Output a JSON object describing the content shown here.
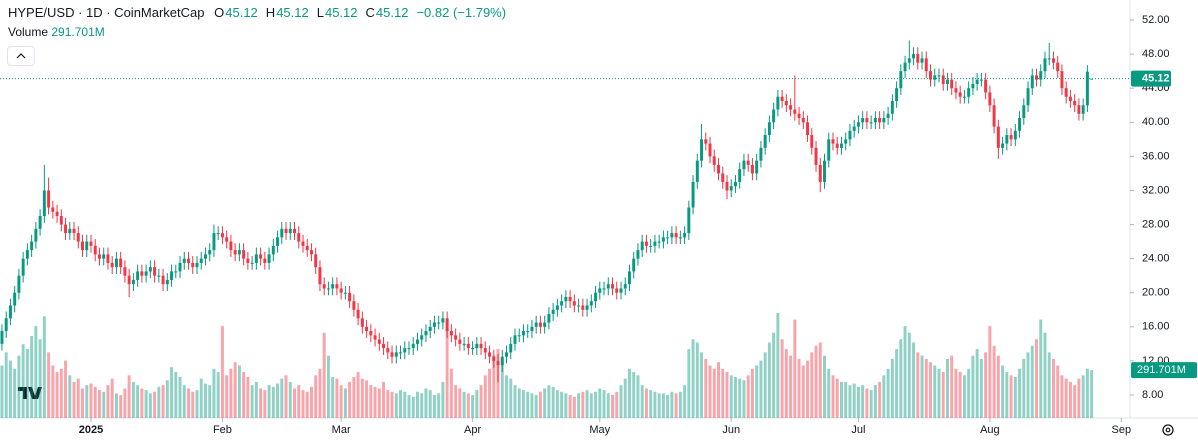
{
  "chart_data": {
    "type": "candlestick",
    "title": "HYPE/USD · 1D · CoinMarketCap",
    "header_letters": [
      "O",
      "H",
      "L",
      "C"
    ],
    "header_values": [
      45.12,
      45.12,
      45.12,
      45.12
    ],
    "header_change": "−0.82 (−1.79%)",
    "volume_title": "Volume",
    "volume_label": "291.701M",
    "up_color": "#089981",
    "down_color": "#f23645",
    "grid": false,
    "xlim": [
      0.54,
      267.05
    ],
    "xticks": [
      {
        "value": 22,
        "label": "2025"
      },
      {
        "value": 53,
        "label": "Feb"
      },
      {
        "value": 81,
        "label": "Mar"
      },
      {
        "value": 112,
        "label": "Apr"
      },
      {
        "value": 142,
        "label": "May"
      },
      {
        "value": 173,
        "label": "Jun"
      },
      {
        "value": 203,
        "label": "Jul"
      },
      {
        "value": 234,
        "label": "Aug"
      },
      {
        "value": 265,
        "label": "Sep"
      }
    ],
    "ylim": [
      5.3,
      54.35
    ],
    "yticks": [
      {
        "value": 8,
        "label": "8.00"
      },
      {
        "value": 12,
        "label": "12.00"
      },
      {
        "value": 16,
        "label": "16.00"
      },
      {
        "value": 20,
        "label": "20.00"
      },
      {
        "value": 24,
        "label": "24.00"
      },
      {
        "value": 28,
        "label": "28.00"
      },
      {
        "value": 32,
        "label": "32.00"
      },
      {
        "value": 36,
        "label": "36.00"
      },
      {
        "value": 40,
        "label": "40.00"
      },
      {
        "value": 44,
        "label": "44.00"
      },
      {
        "value": 48,
        "label": "48.00"
      },
      {
        "value": 52,
        "label": "52.00"
      }
    ],
    "open": [
      13.0,
      14.0,
      15.5,
      17.0,
      18.5,
      20.0,
      22.0,
      24.0,
      25.0,
      26.0,
      27.5,
      29.0,
      32.0,
      30.0,
      29.5,
      29.0,
      28.0,
      27.0,
      27.5,
      27.0,
      26.0,
      25.0,
      26.0,
      25.5,
      24.5,
      24.0,
      24.5,
      23.5,
      23.0,
      24.0,
      23.0,
      22.0,
      21.0,
      21.5,
      22.5,
      22.0,
      22.5,
      23.0,
      22.0,
      22.0,
      21.0,
      21.5,
      22.5,
      22.5,
      23.5,
      24.0,
      23.5,
      23.0,
      23.5,
      24.0,
      24.5,
      25.0,
      27.0,
      27.0,
      26.5,
      26.0,
      25.0,
      24.5,
      25.0,
      24.0,
      23.5,
      23.5,
      24.5,
      24.0,
      23.5,
      24.5,
      25.5,
      26.5,
      27.5,
      27.0,
      27.5,
      27.0,
      26.0,
      25.5,
      25.0,
      24.5,
      23.0,
      21.0,
      20.5,
      20.5,
      21.0,
      20.5,
      20.0,
      20.0,
      19.0,
      18.0,
      17.0,
      16.0,
      15.5,
      15.0,
      14.5,
      14.0,
      13.5,
      13.0,
      12.5,
      13.0,
      13.0,
      13.5,
      13.5,
      14.0,
      14.5,
      15.0,
      15.5,
      16.0,
      16.5,
      16.5,
      17.0,
      15.5,
      15.0,
      14.5,
      14.0,
      14.0,
      13.5,
      13.5,
      14.0,
      13.5,
      13.0,
      12.5,
      12.0,
      11.5,
      12.5,
      13.0,
      14.0,
      15.0,
      15.0,
      15.5,
      15.5,
      16.0,
      16.5,
      16.0,
      16.5,
      17.5,
      18.0,
      18.5,
      19.0,
      19.5,
      19.0,
      18.5,
      18.5,
      18.0,
      18.5,
      19.0,
      20.0,
      20.5,
      20.5,
      21.0,
      20.5,
      20.0,
      20.5,
      21.0,
      22.5,
      24.0,
      25.0,
      26.0,
      25.5,
      25.5,
      26.0,
      26.0,
      26.5,
      26.5,
      27.0,
      26.5,
      26.5,
      27.0,
      30.0,
      33.0,
      35.5,
      38.0,
      37.5,
      36.0,
      35.0,
      34.0,
      33.0,
      32.0,
      32.5,
      33.0,
      34.5,
      35.5,
      35.0,
      34.0,
      35.5,
      37.0,
      38.5,
      40.0,
      41.5,
      43.0,
      42.5,
      42.0,
      41.5,
      41.0,
      40.5,
      40.0,
      38.5,
      37.0,
      35.0,
      33.0,
      35.5,
      38.0,
      37.5,
      37.0,
      37.5,
      38.0,
      39.0,
      39.5,
      40.0,
      40.5,
      40.0,
      40.0,
      40.5,
      40.0,
      40.5,
      41.0,
      42.5,
      44.0,
      46.0,
      47.0,
      47.5,
      48.0,
      47.0,
      47.5,
      46.0,
      45.0,
      45.5,
      45.5,
      44.5,
      45.0,
      44.0,
      43.5,
      43.0,
      43.0,
      44.0,
      44.5,
      45.0,
      45.0,
      43.5,
      42.0,
      39.5,
      37.0,
      37.5,
      38.5,
      38.0,
      39.0,
      40.5,
      42.0,
      44.0,
      45.5,
      45.0,
      46.0,
      47.5,
      47.5,
      47.0,
      46.0,
      44.0,
      43.0,
      42.5,
      42.0,
      41.0,
      42.0,
      45.12
    ],
    "high": [
      14.8,
      16.3,
      17.8,
      19.3,
      20.8,
      22.8,
      24.8,
      25.8,
      26.8,
      28.3,
      29.8,
      35.0,
      33.5,
      30.8,
      30.3,
      29.8,
      28.8,
      28.3,
      28.3,
      27.8,
      26.8,
      26.8,
      26.8,
      26.3,
      25.3,
      25.3,
      25.3,
      24.3,
      24.8,
      24.8,
      23.8,
      22.8,
      22.3,
      23.3,
      23.3,
      23.3,
      23.8,
      23.8,
      22.8,
      22.8,
      22.3,
      23.3,
      23.3,
      24.3,
      24.8,
      24.8,
      24.3,
      24.3,
      24.8,
      25.3,
      25.8,
      28.0,
      27.8,
      27.8,
      27.3,
      26.8,
      25.8,
      25.8,
      25.8,
      24.8,
      24.3,
      25.3,
      25.3,
      24.8,
      25.3,
      26.3,
      27.3,
      28.3,
      28.3,
      28.3,
      28.3,
      27.8,
      26.8,
      26.3,
      25.8,
      25.3,
      23.8,
      21.8,
      21.3,
      21.8,
      21.8,
      21.3,
      20.8,
      20.8,
      19.8,
      18.8,
      17.8,
      16.8,
      16.3,
      15.8,
      15.3,
      14.8,
      14.3,
      13.8,
      13.8,
      13.8,
      14.3,
      14.3,
      14.8,
      15.3,
      15.8,
      16.3,
      16.8,
      17.3,
      17.3,
      17.8,
      17.8,
      16.3,
      15.8,
      15.3,
      14.8,
      14.8,
      14.3,
      14.8,
      14.8,
      14.3,
      13.8,
      13.3,
      12.8,
      13.3,
      13.8,
      14.8,
      15.8,
      15.8,
      16.3,
      16.3,
      16.8,
      17.3,
      17.3,
      17.3,
      18.3,
      18.8,
      19.3,
      19.8,
      20.3,
      20.3,
      19.8,
      19.3,
      19.3,
      19.3,
      19.8,
      20.8,
      21.3,
      21.3,
      21.8,
      21.8,
      21.3,
      21.3,
      21.8,
      23.3,
      24.8,
      25.8,
      26.8,
      26.8,
      26.3,
      26.8,
      26.8,
      27.3,
      27.3,
      27.8,
      27.8,
      27.3,
      27.8,
      30.8,
      33.8,
      36.3,
      39.8,
      38.8,
      38.3,
      36.8,
      35.8,
      34.8,
      33.8,
      33.3,
      33.8,
      35.3,
      36.3,
      36.3,
      35.8,
      36.3,
      37.8,
      39.3,
      40.8,
      42.3,
      43.8,
      43.8,
      43.3,
      42.8,
      45.5,
      41.8,
      41.3,
      40.8,
      39.3,
      37.8,
      35.8,
      36.3,
      38.8,
      38.8,
      38.3,
      38.3,
      38.8,
      39.8,
      40.3,
      40.8,
      41.3,
      41.3,
      40.8,
      41.3,
      41.3,
      41.3,
      41.8,
      43.3,
      44.8,
      46.8,
      47.8,
      49.6,
      48.8,
      48.8,
      48.3,
      48.3,
      46.8,
      46.3,
      46.3,
      46.3,
      45.8,
      45.8,
      44.8,
      44.3,
      43.8,
      44.8,
      45.3,
      45.8,
      45.8,
      45.8,
      44.3,
      42.8,
      40.3,
      38.3,
      39.3,
      39.3,
      39.8,
      41.3,
      42.8,
      44.8,
      46.3,
      46.3,
      46.8,
      48.3,
      49.3,
      48.3,
      47.8,
      46.8,
      44.8,
      43.8,
      43.3,
      42.8,
      42.8,
      46.7,
      45.12
    ],
    "low": [
      12.2,
      13.2,
      14.7,
      16.2,
      17.7,
      19.2,
      21.2,
      23.2,
      24.2,
      25.2,
      26.7,
      28.2,
      29.2,
      28.7,
      28.2,
      27.2,
      26.2,
      26.2,
      26.2,
      25.2,
      24.2,
      24.2,
      24.7,
      23.7,
      23.2,
      23.2,
      22.7,
      22.2,
      22.2,
      22.2,
      21.2,
      19.5,
      20.2,
      20.7,
      21.2,
      21.2,
      21.7,
      21.2,
      21.2,
      20.2,
      20.2,
      20.7,
      21.7,
      21.7,
      22.7,
      22.7,
      22.2,
      22.2,
      22.7,
      23.2,
      23.7,
      24.2,
      26.2,
      25.7,
      25.2,
      24.2,
      23.7,
      23.7,
      23.2,
      22.7,
      22.7,
      22.7,
      23.2,
      22.7,
      22.7,
      23.7,
      24.7,
      25.7,
      26.2,
      26.2,
      26.2,
      25.2,
      24.7,
      24.2,
      23.7,
      22.2,
      20.2,
      19.7,
      19.7,
      19.7,
      19.7,
      19.2,
      19.2,
      18.2,
      17.2,
      16.2,
      15.2,
      14.7,
      14.2,
      13.7,
      13.2,
      12.7,
      12.2,
      11.7,
      11.7,
      12.2,
      12.2,
      12.7,
      12.7,
      13.2,
      13.7,
      14.2,
      14.7,
      15.2,
      15.7,
      15.7,
      14.7,
      14.2,
      13.7,
      13.2,
      13.2,
      12.7,
      12.7,
      12.7,
      12.7,
      12.2,
      11.7,
      11.2,
      9.5,
      10.7,
      11.7,
      12.2,
      13.2,
      14.2,
      14.2,
      14.7,
      14.7,
      15.2,
      15.2,
      15.2,
      15.7,
      16.7,
      17.2,
      17.7,
      18.2,
      18.2,
      17.7,
      17.7,
      17.2,
      17.2,
      17.7,
      18.2,
      19.2,
      19.7,
      19.7,
      19.7,
      19.2,
      19.2,
      19.7,
      20.2,
      21.7,
      23.2,
      24.2,
      24.7,
      24.7,
      24.7,
      25.2,
      25.2,
      25.7,
      25.7,
      25.7,
      25.7,
      25.7,
      26.2,
      29.2,
      32.2,
      34.7,
      36.7,
      35.2,
      34.2,
      33.2,
      32.2,
      31.0,
      31.2,
      31.7,
      32.2,
      33.7,
      34.2,
      33.2,
      33.2,
      34.7,
      36.2,
      37.7,
      39.2,
      40.7,
      41.7,
      41.2,
      40.7,
      40.2,
      39.7,
      39.2,
      37.7,
      36.2,
      34.2,
      31.8,
      32.2,
      34.7,
      36.7,
      36.2,
      36.2,
      36.7,
      37.2,
      38.2,
      38.7,
      39.2,
      39.2,
      39.2,
      39.2,
      39.2,
      39.2,
      39.7,
      40.2,
      41.7,
      43.2,
      45.2,
      46.2,
      46.7,
      46.2,
      46.2,
      45.2,
      44.2,
      44.2,
      44.7,
      43.7,
      43.7,
      43.2,
      42.7,
      42.2,
      42.2,
      42.2,
      43.2,
      43.7,
      44.2,
      42.7,
      41.2,
      38.7,
      35.7,
      36.2,
      36.7,
      37.2,
      37.2,
      38.2,
      39.7,
      41.2,
      43.2,
      44.2,
      44.2,
      45.2,
      46.7,
      46.2,
      45.2,
      43.2,
      42.2,
      41.7,
      41.2,
      40.2,
      40.2,
      41.2,
      45.12
    ],
    "close": [
      14.0,
      15.5,
      17.0,
      18.5,
      20.0,
      22.0,
      24.0,
      25.0,
      26.0,
      27.5,
      29.0,
      32.0,
      30.0,
      29.5,
      29.0,
      28.0,
      27.0,
      27.5,
      27.0,
      26.0,
      25.0,
      26.0,
      25.5,
      24.5,
      24.0,
      24.5,
      23.5,
      23.0,
      24.0,
      23.0,
      22.0,
      21.0,
      21.5,
      22.5,
      22.0,
      22.5,
      23.0,
      22.0,
      22.0,
      21.0,
      21.5,
      22.5,
      22.5,
      23.5,
      24.0,
      23.5,
      23.0,
      23.5,
      24.0,
      24.5,
      25.0,
      27.0,
      27.0,
      26.5,
      26.0,
      25.0,
      24.5,
      25.0,
      24.0,
      23.5,
      23.5,
      24.5,
      24.0,
      23.5,
      24.5,
      25.5,
      26.5,
      27.5,
      27.0,
      27.5,
      27.0,
      26.0,
      25.5,
      25.0,
      24.5,
      23.0,
      21.0,
      20.5,
      20.5,
      21.0,
      20.5,
      20.0,
      20.0,
      19.0,
      18.0,
      17.0,
      16.0,
      15.5,
      15.0,
      14.5,
      14.0,
      13.5,
      13.0,
      12.5,
      13.0,
      13.0,
      13.5,
      13.5,
      14.0,
      14.5,
      15.0,
      15.5,
      16.0,
      16.5,
      16.5,
      17.0,
      15.5,
      15.0,
      14.5,
      14.0,
      14.0,
      13.5,
      13.5,
      14.0,
      13.5,
      13.0,
      12.5,
      12.0,
      11.5,
      12.5,
      13.0,
      14.0,
      15.0,
      15.0,
      15.5,
      15.5,
      16.0,
      16.5,
      16.0,
      16.5,
      17.5,
      18.0,
      18.5,
      19.0,
      19.5,
      19.0,
      18.5,
      18.5,
      18.0,
      18.5,
      19.0,
      20.0,
      20.5,
      20.5,
      21.0,
      20.5,
      20.0,
      20.5,
      21.0,
      22.5,
      24.0,
      25.0,
      26.0,
      25.5,
      25.5,
      26.0,
      26.0,
      26.5,
      26.5,
      27.0,
      26.5,
      26.5,
      27.0,
      30.0,
      33.0,
      35.5,
      38.0,
      37.5,
      36.0,
      35.0,
      34.0,
      33.0,
      32.0,
      32.5,
      33.0,
      34.5,
      35.5,
      35.0,
      34.0,
      35.5,
      37.0,
      38.5,
      40.0,
      41.5,
      43.0,
      42.5,
      42.0,
      41.5,
      41.0,
      40.5,
      40.0,
      38.5,
      37.0,
      35.0,
      33.0,
      35.5,
      38.0,
      37.5,
      37.0,
      37.5,
      38.0,
      39.0,
      39.5,
      40.0,
      40.5,
      40.0,
      40.0,
      40.5,
      40.0,
      40.5,
      41.0,
      42.5,
      44.0,
      46.0,
      47.0,
      47.5,
      48.0,
      47.0,
      47.5,
      46.0,
      45.0,
      45.5,
      45.5,
      44.5,
      45.0,
      44.0,
      43.5,
      43.0,
      43.0,
      44.0,
      44.5,
      45.0,
      45.0,
      43.5,
      42.0,
      39.5,
      37.0,
      37.5,
      38.5,
      38.0,
      39.0,
      40.5,
      42.0,
      44.0,
      45.5,
      45.0,
      46.0,
      47.5,
      47.5,
      47.0,
      46.0,
      44.0,
      43.0,
      42.5,
      42.0,
      41.0,
      42.0,
      45.94,
      45.12
    ],
    "volume": [
      250,
      320,
      400,
      350,
      300,
      380,
      450,
      420,
      500,
      560,
      480,
      620,
      400,
      320,
      280,
      300,
      350,
      260,
      220,
      240,
      180,
      200,
      210,
      190,
      170,
      160,
      200,
      240,
      150,
      140,
      180,
      260,
      220,
      200,
      180,
      170,
      150,
      160,
      190,
      200,
      230,
      310,
      280,
      250,
      200,
      180,
      160,
      170,
      240,
      210,
      200,
      300,
      280,
      560,
      260,
      300,
      340,
      320,
      280,
      250,
      200,
      220,
      180,
      170,
      200,
      190,
      210,
      240,
      260,
      220,
      180,
      200,
      170,
      160,
      190,
      260,
      300,
      520,
      380,
      250,
      240,
      200,
      180,
      220,
      250,
      280,
      240,
      230,
      200,
      190,
      180,
      220,
      170,
      160,
      150,
      170,
      160,
      140,
      130,
      160,
      150,
      180,
      170,
      140,
      150,
      220,
      540,
      300,
      200,
      180,
      160,
      150,
      140,
      170,
      200,
      260,
      300,
      380,
      420,
      340,
      260,
      240,
      200,
      180,
      170,
      160,
      150,
      140,
      160,
      180,
      200,
      190,
      170,
      160,
      150,
      140,
      130,
      150,
      160,
      170,
      150,
      160,
      180,
      170,
      150,
      140,
      160,
      200,
      240,
      300,
      280,
      260,
      200,
      180,
      170,
      160,
      150,
      150,
      140,
      160,
      150,
      160,
      200,
      420,
      480,
      460,
      400,
      360,
      320,
      300,
      340,
      300,
      280,
      260,
      250,
      240,
      230,
      260,
      300,
      320,
      350,
      400,
      460,
      520,
      640,
      480,
      420,
      380,
      600,
      360,
      320,
      350,
      400,
      440,
      460,
      380,
      300,
      260,
      240,
      220,
      220,
      200,
      210,
      190,
      200,
      180,
      170,
      200,
      220,
      260,
      300,
      360,
      420,
      480,
      560,
      520,
      460,
      400,
      380,
      360,
      340,
      320,
      300,
      280,
      360,
      380,
      300,
      280,
      260,
      300,
      380,
      420,
      360,
      400,
      560,
      440,
      380,
      320,
      280,
      260,
      250,
      300,
      360,
      400,
      440,
      480,
      600,
      520,
      400,
      360,
      320,
      260,
      240,
      220,
      200,
      240,
      260,
      300,
      291.701
    ]
  }
}
